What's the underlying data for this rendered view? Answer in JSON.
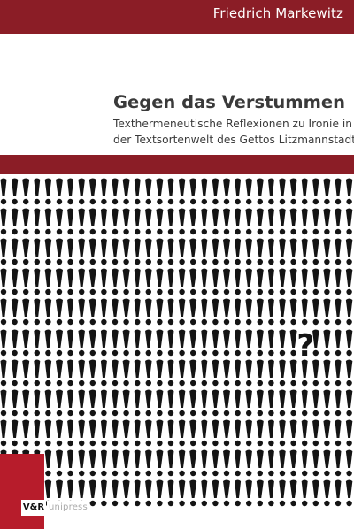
{
  "cover": {
    "author": "Friedrich Markewitz",
    "title": "Gegen das Verstummen",
    "subtitle_line1": "Texthermeneutische Reflexionen zu Ironie in",
    "subtitle_line2": "der Textsortenwelt des Gettos Litzmannstadt",
    "publisher_mark": "V&R",
    "publisher_label": "unipress"
  },
  "colors": {
    "band": "#8b1d26",
    "logo": "#b71c2b",
    "glyph": "#141414"
  },
  "pattern": {
    "glyph": "!",
    "special_glyph": "?",
    "rows": 11,
    "special_row": 5
  }
}
